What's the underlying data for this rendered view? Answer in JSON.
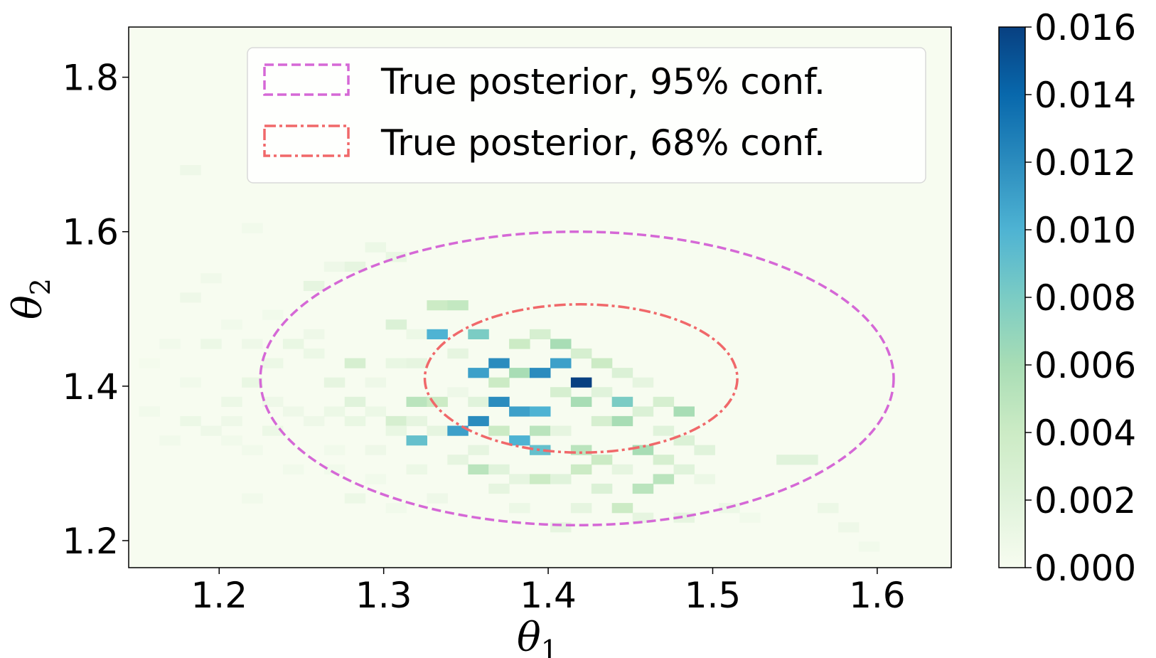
{
  "chart_data": {
    "type": "heatmap",
    "title": "",
    "xlabel": "θ",
    "xlabel_sub": "1",
    "ylabel": "θ",
    "ylabel_sub": "2",
    "xlim": [
      1.145,
      1.645
    ],
    "ylim": [
      1.165,
      1.865
    ],
    "xticks": [
      1.2,
      1.3,
      1.4,
      1.5,
      1.6
    ],
    "xtick_labels": [
      "1.2",
      "1.3",
      "1.4",
      "1.5",
      "1.6"
    ],
    "yticks": [
      1.2,
      1.4,
      1.6,
      1.8
    ],
    "ytick_labels": [
      "1.2",
      "1.4",
      "1.6",
      "1.8"
    ],
    "colorbar": {
      "range": [
        0.0,
        0.016
      ],
      "ticks": [
        0.0,
        0.002,
        0.004,
        0.006,
        0.008,
        0.01,
        0.012,
        0.014,
        0.016
      ],
      "tick_labels": [
        "0.000",
        "0.002",
        "0.004",
        "0.006",
        "0.008",
        "0.010",
        "0.012",
        "0.014",
        "0.016"
      ],
      "colormap": [
        "#f7fcf0",
        "#e0f3db",
        "#ccebc5",
        "#a8ddb5",
        "#7bccc4",
        "#4eb3d3",
        "#2b8cbe",
        "#0868ac",
        "#084081"
      ]
    },
    "bin_width": 0.0125,
    "bin_height": 0.0125,
    "cells": [
      [
        1.1575,
        1.43,
        0.0003
      ],
      [
        1.1575,
        1.3675,
        0.0005
      ],
      [
        1.17,
        1.33,
        0.0005
      ],
      [
        1.17,
        1.455,
        0.0005
      ],
      [
        1.1825,
        1.68,
        0.0008
      ],
      [
        1.1825,
        1.355,
        0.001
      ],
      [
        1.1825,
        1.515,
        0.0008
      ],
      [
        1.1825,
        1.405,
        0.0005
      ],
      [
        1.195,
        1.54,
        0.0006
      ],
      [
        1.195,
        1.3425,
        0.0008
      ],
      [
        1.195,
        1.455,
        0.001
      ],
      [
        1.2075,
        1.355,
        0.0008
      ],
      [
        1.2075,
        1.38,
        0.001
      ],
      [
        1.2075,
        1.33,
        0.0005
      ],
      [
        1.2075,
        1.48,
        0.0005
      ],
      [
        1.22,
        1.455,
        0.0008
      ],
      [
        1.22,
        1.405,
        0.0012
      ],
      [
        1.22,
        1.3175,
        0.0005
      ],
      [
        1.22,
        1.255,
        0.0005
      ],
      [
        1.22,
        1.605,
        0.0005
      ],
      [
        1.2325,
        1.43,
        0.001
      ],
      [
        1.2325,
        1.38,
        0.0008
      ],
      [
        1.2325,
        1.3425,
        0.001
      ],
      [
        1.2325,
        1.4925,
        0.0005
      ],
      [
        1.245,
        1.455,
        0.0012
      ],
      [
        1.245,
        1.3675,
        0.0008
      ],
      [
        1.245,
        1.2925,
        0.0005
      ],
      [
        1.2575,
        1.53,
        0.0015
      ],
      [
        1.2575,
        1.4425,
        0.001
      ],
      [
        1.2575,
        1.355,
        0.0008
      ],
      [
        1.2575,
        1.4675,
        0.0008
      ],
      [
        1.27,
        1.555,
        0.0008
      ],
      [
        1.27,
        1.405,
        0.0015
      ],
      [
        1.27,
        1.3675,
        0.001
      ],
      [
        1.27,
        1.2925,
        0.0005
      ],
      [
        1.27,
        1.3175,
        0.0005
      ],
      [
        1.2825,
        1.555,
        0.0015
      ],
      [
        1.2825,
        1.43,
        0.003
      ],
      [
        1.2825,
        1.38,
        0.002
      ],
      [
        1.2825,
        1.355,
        0.0012
      ],
      [
        1.2825,
        1.255,
        0.001
      ],
      [
        1.295,
        1.58,
        0.001
      ],
      [
        1.295,
        1.405,
        0.0008
      ],
      [
        1.295,
        1.3675,
        0.001
      ],
      [
        1.295,
        1.3175,
        0.0008
      ],
      [
        1.295,
        1.28,
        0.0005
      ],
      [
        1.3075,
        1.5675,
        0.0012
      ],
      [
        1.3075,
        1.48,
        0.0025
      ],
      [
        1.3075,
        1.43,
        0.0012
      ],
      [
        1.3075,
        1.355,
        0.003
      ],
      [
        1.3075,
        1.3425,
        0.0012
      ],
      [
        1.3075,
        1.2425,
        0.0005
      ],
      [
        1.32,
        1.4675,
        0.001
      ],
      [
        1.32,
        1.43,
        0.0015
      ],
      [
        1.32,
        1.38,
        0.005
      ],
      [
        1.32,
        1.355,
        0.0015
      ],
      [
        1.32,
        1.33,
        0.009
      ],
      [
        1.32,
        1.2925,
        0.001
      ],
      [
        1.3325,
        1.505,
        0.004
      ],
      [
        1.3325,
        1.4675,
        0.01
      ],
      [
        1.3325,
        1.38,
        0.004
      ],
      [
        1.3325,
        1.3425,
        0.0015
      ],
      [
        1.3325,
        1.255,
        0.0008
      ],
      [
        1.345,
        1.505,
        0.0045
      ],
      [
        1.345,
        1.4425,
        0.0015
      ],
      [
        1.345,
        1.3925,
        0.0008
      ],
      [
        1.345,
        1.3425,
        0.011
      ],
      [
        1.345,
        1.305,
        0.0015
      ],
      [
        1.3575,
        1.4675,
        0.008
      ],
      [
        1.3575,
        1.4175,
        0.011
      ],
      [
        1.3575,
        1.38,
        0.002
      ],
      [
        1.3575,
        1.355,
        0.012
      ],
      [
        1.3575,
        1.3175,
        0.0015
      ],
      [
        1.3575,
        1.2925,
        0.005
      ],
      [
        1.37,
        1.43,
        0.012
      ],
      [
        1.37,
        1.405,
        0.004
      ],
      [
        1.37,
        1.38,
        0.012
      ],
      [
        1.37,
        1.3425,
        0.004
      ],
      [
        1.37,
        1.2925,
        0.002
      ],
      [
        1.37,
        1.2675,
        0.0015
      ],
      [
        1.3825,
        1.455,
        0.004
      ],
      [
        1.3825,
        1.4175,
        0.006
      ],
      [
        1.3825,
        1.3675,
        0.011
      ],
      [
        1.3825,
        1.33,
        0.01
      ],
      [
        1.3825,
        1.28,
        0.0015
      ],
      [
        1.3825,
        1.2425,
        0.001
      ],
      [
        1.395,
        1.4675,
        0.003
      ],
      [
        1.395,
        1.4175,
        0.012
      ],
      [
        1.395,
        1.3675,
        0.01
      ],
      [
        1.395,
        1.3425,
        0.005
      ],
      [
        1.395,
        1.3175,
        0.009
      ],
      [
        1.395,
        1.28,
        0.004
      ],
      [
        1.4075,
        1.455,
        0.006
      ],
      [
        1.4075,
        1.43,
        0.011
      ],
      [
        1.4075,
        1.3925,
        0.003
      ],
      [
        1.4075,
        1.3425,
        0.0015
      ],
      [
        1.4075,
        1.28,
        0.002
      ],
      [
        1.4075,
        1.2175,
        0.0015
      ],
      [
        1.42,
        1.4425,
        0.003
      ],
      [
        1.42,
        1.405,
        0.016
      ],
      [
        1.42,
        1.38,
        0.006
      ],
      [
        1.42,
        1.3175,
        0.005
      ],
      [
        1.42,
        1.2925,
        0.004
      ],
      [
        1.42,
        1.2425,
        0.0015
      ],
      [
        1.4325,
        1.43,
        0.004
      ],
      [
        1.4325,
        1.3925,
        0.002
      ],
      [
        1.4325,
        1.355,
        0.003
      ],
      [
        1.4325,
        1.305,
        0.004
      ],
      [
        1.4325,
        1.2675,
        0.0025
      ],
      [
        1.445,
        1.4175,
        0.0025
      ],
      [
        1.445,
        1.38,
        0.008
      ],
      [
        1.445,
        1.355,
        0.006
      ],
      [
        1.445,
        1.2925,
        0.0015
      ],
      [
        1.445,
        1.2425,
        0.004
      ],
      [
        1.4575,
        1.405,
        0.0015
      ],
      [
        1.4575,
        1.3675,
        0.0025
      ],
      [
        1.4575,
        1.3175,
        0.006
      ],
      [
        1.4575,
        1.2675,
        0.005
      ],
      [
        1.4575,
        1.23,
        0.0015
      ],
      [
        1.47,
        1.38,
        0.003
      ],
      [
        1.47,
        1.3425,
        0.002
      ],
      [
        1.47,
        1.305,
        0.003
      ],
      [
        1.47,
        1.28,
        0.005
      ],
      [
        1.4825,
        1.3675,
        0.006
      ],
      [
        1.4825,
        1.33,
        0.0025
      ],
      [
        1.4825,
        1.2925,
        0.002
      ],
      [
        1.4825,
        1.23,
        0.0015
      ],
      [
        1.495,
        1.3175,
        0.002
      ],
      [
        1.495,
        1.28,
        0.001
      ],
      [
        1.51,
        1.2425,
        0.001
      ],
      [
        1.5225,
        1.23,
        0.0005
      ],
      [
        1.545,
        1.305,
        0.002
      ],
      [
        1.5575,
        1.305,
        0.002
      ],
      [
        1.57,
        1.2425,
        0.001
      ],
      [
        1.5825,
        1.2175,
        0.0008
      ],
      [
        1.595,
        1.1925,
        0.0005
      ]
    ],
    "contours": [
      {
        "name": "True posterior, 95% conf.",
        "color": "#d568d6",
        "dash": "dashed",
        "cx": 1.4175,
        "cy": 1.41,
        "rx": 0.1925,
        "ry": 0.19
      },
      {
        "name": "True posterior, 68% conf.",
        "color": "#f0686a",
        "dash": "dashdot",
        "cx": 1.42,
        "cy": 1.41,
        "rx": 0.095,
        "ry": 0.096
      }
    ],
    "legend_position": "upper-right",
    "grid": false,
    "background_value": 0.0
  }
}
